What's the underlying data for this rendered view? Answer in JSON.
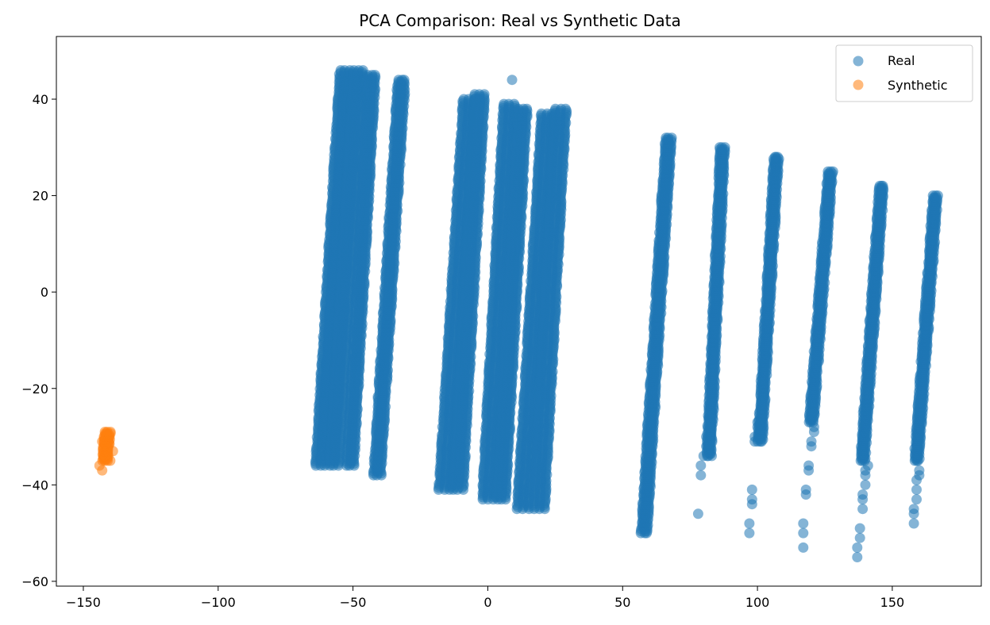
{
  "chart_data": {
    "type": "scatter",
    "title": "PCA Comparison: Real vs Synthetic Data",
    "xlabel": "",
    "ylabel": "",
    "xlim": [
      -160,
      183
    ],
    "ylim": [
      -61,
      53
    ],
    "x_ticks": [
      -150,
      -100,
      -50,
      0,
      50,
      100,
      150
    ],
    "y_ticks": [
      -60,
      -40,
      -20,
      0,
      20,
      40
    ],
    "x_tick_labels": [
      "−150",
      "−100",
      "−50",
      "0",
      "50",
      "100",
      "150"
    ],
    "y_tick_labels": [
      "−60",
      "−40",
      "−20",
      "0",
      "20",
      "40"
    ],
    "grid": false,
    "legend_position": "top-right",
    "series": [
      {
        "name": "Real",
        "color": "#1f77b4",
        "opacity": 0.55,
        "clusters": [
          {
            "x_bottom": -62,
            "y_bottom": -36,
            "x_top": -53,
            "y_top": 46,
            "width": 3.5
          },
          {
            "x_bottom": -57,
            "y_bottom": -36,
            "x_top": -48,
            "y_top": 46,
            "width": 3.5
          },
          {
            "x_bottom": -51,
            "y_bottom": -36,
            "x_top": -43,
            "y_top": 45,
            "width": 2.5
          },
          {
            "x_bottom": -41,
            "y_bottom": -38,
            "x_top": -32,
            "y_top": 44,
            "width": 2.5
          },
          {
            "x_bottom": -16,
            "y_bottom": -41,
            "x_top": -7,
            "y_top": 40,
            "width": 4
          },
          {
            "x_bottom": -11,
            "y_bottom": -41,
            "x_top": -3,
            "y_top": 41,
            "width": 3.5
          },
          {
            "x_bottom": 0,
            "y_bottom": -43,
            "x_top": 8,
            "y_top": 39,
            "width": 4
          },
          {
            "x_bottom": 5,
            "y_bottom": -43,
            "x_top": 13,
            "y_top": 38,
            "width": 3
          },
          {
            "x_bottom": 13,
            "y_bottom": -45,
            "x_top": 22,
            "y_top": 37,
            "width": 4
          },
          {
            "x_bottom": 19,
            "y_bottom": -45,
            "x_top": 27,
            "y_top": 38,
            "width": 4
          },
          {
            "x_bottom": 58,
            "y_bottom": -50,
            "x_top": 67,
            "y_top": 32,
            "width": 2
          },
          {
            "x_bottom": 82,
            "y_bottom": -34,
            "x_top": 87,
            "y_top": 30,
            "width": 1.5
          },
          {
            "x_bottom": 101,
            "y_bottom": -31,
            "x_top": 107,
            "y_top": 28,
            "width": 1.5
          },
          {
            "x_bottom": 120,
            "y_bottom": -27,
            "x_top": 127,
            "y_top": 25,
            "width": 1.5
          },
          {
            "x_bottom": 139,
            "y_bottom": -35,
            "x_top": 146,
            "y_top": 22,
            "width": 1.5
          },
          {
            "x_bottom": 159,
            "y_bottom": -35,
            "x_top": 166,
            "y_top": 20,
            "width": 1.5
          }
        ],
        "scattered_points": [
          [
            9,
            44
          ],
          [
            78,
            -46
          ],
          [
            79,
            -38
          ],
          [
            79,
            -36
          ],
          [
            80,
            -34
          ],
          [
            81,
            -32
          ],
          [
            81,
            -30
          ],
          [
            82,
            -28
          ],
          [
            82,
            -26
          ],
          [
            97,
            -50
          ],
          [
            97,
            -48
          ],
          [
            98,
            -44
          ],
          [
            98,
            -43
          ],
          [
            98,
            -41
          ],
          [
            99,
            -31
          ],
          [
            99,
            -30
          ],
          [
            100,
            -28
          ],
          [
            100,
            -27
          ],
          [
            117,
            -53
          ],
          [
            117,
            -50
          ],
          [
            117,
            -48
          ],
          [
            118,
            -42
          ],
          [
            118,
            -41
          ],
          [
            119,
            -37
          ],
          [
            119,
            -36
          ],
          [
            120,
            -32
          ],
          [
            120,
            -31
          ],
          [
            121,
            -29
          ],
          [
            121,
            -28
          ],
          [
            121,
            -25
          ],
          [
            137,
            -55
          ],
          [
            137,
            -53
          ],
          [
            138,
            -51
          ],
          [
            138,
            -49
          ],
          [
            139,
            -45
          ],
          [
            139,
            -43
          ],
          [
            139,
            -42
          ],
          [
            140,
            -40
          ],
          [
            140,
            -38
          ],
          [
            140,
            -37
          ],
          [
            141,
            -36
          ],
          [
            158,
            -48
          ],
          [
            158,
            -46
          ],
          [
            158,
            -45
          ],
          [
            159,
            -43
          ],
          [
            159,
            -41
          ],
          [
            159,
            -39
          ],
          [
            160,
            -38
          ],
          [
            160,
            -37
          ]
        ]
      },
      {
        "name": "Synthetic",
        "color": "#ff7f0e",
        "opacity": 0.55,
        "clusters": [
          {
            "x_bottom": -142,
            "y_bottom": -35,
            "x_top": -141,
            "y_top": -29,
            "width": 1.8
          }
        ],
        "scattered_points": [
          [
            -144,
            -36
          ],
          [
            -143,
            -37
          ],
          [
            -140,
            -35
          ],
          [
            -143,
            -31
          ],
          [
            -139,
            -33
          ],
          [
            -142,
            -34
          ]
        ]
      }
    ]
  }
}
